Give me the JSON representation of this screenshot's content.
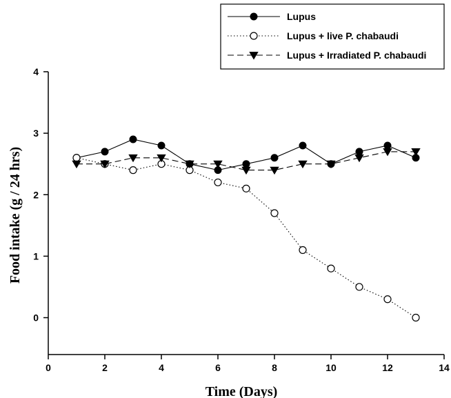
{
  "chart_data": {
    "type": "line",
    "xlabel": "Time (Days)",
    "ylabel": "Food intake (g / 24 hrs)",
    "xlim": [
      0,
      14
    ],
    "ylim": [
      -0.6,
      4
    ],
    "xticks": [
      0,
      2,
      4,
      6,
      8,
      10,
      12,
      14
    ],
    "yticks": [
      0,
      1,
      2,
      3,
      4
    ],
    "grid": false,
    "legend_position": "top-right",
    "series": [
      {
        "name": "Lupus",
        "marker": "filled-circle",
        "line_style": "solid",
        "x": [
          1,
          2,
          3,
          4,
          5,
          6,
          7,
          8,
          9,
          10,
          11,
          12,
          13
        ],
        "y": [
          2.6,
          2.7,
          2.9,
          2.8,
          2.5,
          2.4,
          2.5,
          2.6,
          2.8,
          2.5,
          2.7,
          2.8,
          2.6
        ]
      },
      {
        "name": "Lupus + live P. chabaudi",
        "marker": "open-circle",
        "line_style": "dotted",
        "x": [
          1,
          2,
          3,
          4,
          5,
          6,
          7,
          8,
          9,
          10,
          11,
          12,
          13
        ],
        "y": [
          2.6,
          2.5,
          2.4,
          2.5,
          2.4,
          2.2,
          2.1,
          1.7,
          1.1,
          0.8,
          0.5,
          0.3,
          0.0
        ]
      },
      {
        "name": "Lupus + Irradiated P. chabaudi",
        "marker": "filled-triangle-down",
        "line_style": "dashed",
        "x": [
          1,
          2,
          3,
          4,
          5,
          6,
          7,
          8,
          9,
          10,
          11,
          12,
          13
        ],
        "y": [
          2.5,
          2.5,
          2.6,
          2.6,
          2.5,
          2.5,
          2.4,
          2.4,
          2.5,
          2.5,
          2.6,
          2.7,
          2.7
        ]
      }
    ]
  },
  "colors": {
    "ink": "#000000",
    "background": "#ffffff"
  }
}
